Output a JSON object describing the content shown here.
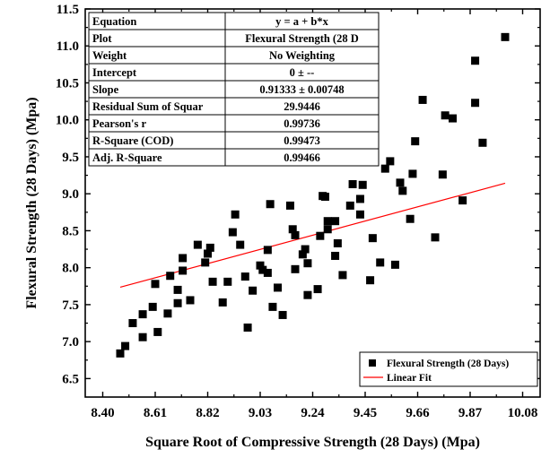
{
  "chart_data": {
    "type": "scatter",
    "xlabel": "Square Root of Compressive Strength (28 Days) (Mpa)",
    "ylabel": "Flexural Strength (28 Days) (Mpa)",
    "xlim": [
      8.33,
      10.15
    ],
    "ylim": [
      6.25,
      11.5
    ],
    "x_ticks": [
      "8.40",
      "8.61",
      "8.82",
      "9.03",
      "9.24",
      "9.45",
      "9.66",
      "9.87",
      "10.08"
    ],
    "y_ticks": [
      "6.5",
      "7.0",
      "7.5",
      "8.0",
      "8.5",
      "9.0",
      "9.5",
      "10.0",
      "10.5",
      "11.0",
      "11.5"
    ],
    "grid": false,
    "legend_position": "bottom-right",
    "series": [
      {
        "name": "Flexural Strength (28 Days)",
        "marker": "square",
        "color": "#000000",
        "points": [
          [
            8.47,
            6.84
          ],
          [
            8.49,
            6.94
          ],
          [
            8.52,
            7.25
          ],
          [
            8.56,
            7.06
          ],
          [
            8.56,
            7.37
          ],
          [
            8.6,
            7.47
          ],
          [
            8.61,
            7.78
          ],
          [
            8.62,
            7.13
          ],
          [
            8.66,
            7.38
          ],
          [
            8.67,
            7.89
          ],
          [
            8.7,
            7.52
          ],
          [
            8.7,
            7.7
          ],
          [
            8.72,
            7.96
          ],
          [
            8.72,
            8.13
          ],
          [
            8.75,
            7.56
          ],
          [
            8.78,
            8.31
          ],
          [
            8.81,
            8.07
          ],
          [
            8.82,
            8.19
          ],
          [
            8.83,
            8.27
          ],
          [
            8.84,
            7.81
          ],
          [
            8.88,
            7.53
          ],
          [
            8.9,
            7.81
          ],
          [
            8.92,
            8.48
          ],
          [
            8.93,
            8.72
          ],
          [
            8.95,
            8.31
          ],
          [
            8.97,
            7.88
          ],
          [
            8.98,
            7.19
          ],
          [
            9.0,
            7.69
          ],
          [
            9.03,
            8.03
          ],
          [
            9.04,
            7.97
          ],
          [
            9.06,
            7.93
          ],
          [
            9.06,
            8.24
          ],
          [
            9.07,
            8.86
          ],
          [
            9.08,
            7.47
          ],
          [
            9.1,
            7.73
          ],
          [
            9.12,
            7.36
          ],
          [
            9.15,
            8.84
          ],
          [
            9.16,
            8.52
          ],
          [
            9.17,
            8.44
          ],
          [
            9.17,
            7.98
          ],
          [
            9.2,
            8.18
          ],
          [
            9.21,
            8.25
          ],
          [
            9.22,
            7.63
          ],
          [
            9.22,
            8.06
          ],
          [
            9.26,
            7.71
          ],
          [
            9.27,
            8.43
          ],
          [
            9.28,
            8.97
          ],
          [
            9.29,
            8.96
          ],
          [
            9.3,
            8.52
          ],
          [
            9.3,
            8.63
          ],
          [
            9.33,
            8.63
          ],
          [
            9.33,
            8.16
          ],
          [
            9.34,
            8.33
          ],
          [
            9.36,
            7.9
          ],
          [
            9.39,
            8.84
          ],
          [
            9.4,
            9.13
          ],
          [
            9.43,
            8.93
          ],
          [
            9.43,
            8.72
          ],
          [
            9.44,
            9.12
          ],
          [
            9.47,
            7.83
          ],
          [
            9.48,
            8.4
          ],
          [
            9.51,
            8.07
          ],
          [
            9.53,
            9.34
          ],
          [
            9.55,
            9.44
          ],
          [
            9.57,
            8.04
          ],
          [
            9.59,
            9.15
          ],
          [
            9.6,
            9.04
          ],
          [
            9.63,
            8.66
          ],
          [
            9.64,
            9.27
          ],
          [
            9.65,
            9.71
          ],
          [
            9.68,
            10.27
          ],
          [
            9.73,
            8.41
          ],
          [
            9.76,
            9.26
          ],
          [
            9.77,
            10.06
          ],
          [
            9.8,
            10.02
          ],
          [
            9.84,
            8.91
          ],
          [
            9.89,
            10.23
          ],
          [
            9.89,
            10.8
          ],
          [
            9.92,
            9.69
          ],
          [
            10.01,
            11.12
          ]
        ]
      },
      {
        "name": "Linear Fit",
        "type": "line",
        "color": "#ff0000",
        "x": [
          8.47,
          10.01
        ],
        "y": [
          7.7358,
          9.1424
        ]
      }
    ],
    "fit_table": {
      "rows": [
        [
          "Equation",
          "y = a + b*x"
        ],
        [
          "Plot",
          "Flexural Strength (28 D"
        ],
        [
          "Weight",
          "No Weighting"
        ],
        [
          "Intercept",
          "0 ± --"
        ],
        [
          "Slope",
          "0.91333 ± 0.00748"
        ],
        [
          "Residual Sum of Squar",
          "29.9446"
        ],
        [
          "Pearson's r",
          "0.99736"
        ],
        [
          "R-Square (COD)",
          "0.99473"
        ],
        [
          "Adj. R-Square",
          "0.99466"
        ]
      ]
    }
  }
}
